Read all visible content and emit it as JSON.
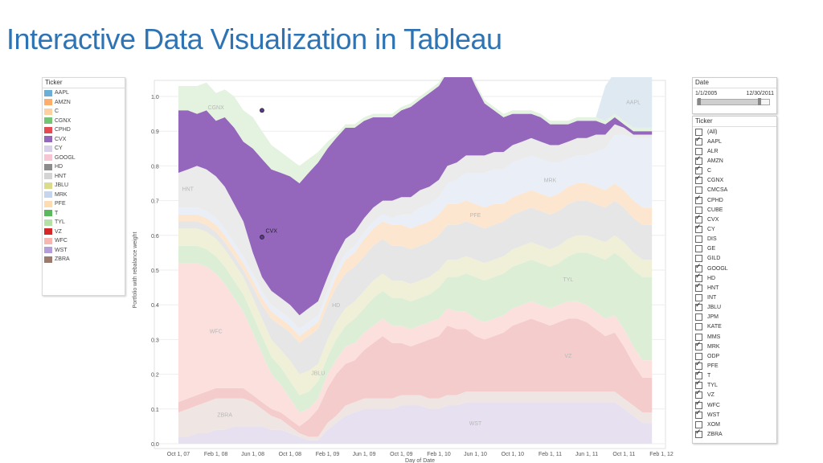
{
  "slide": {
    "title": "Interactive Data Visualization in Tableau"
  },
  "legend": {
    "header": "Ticker",
    "items": [
      {
        "label": "AAPL",
        "color": "#6baed6"
      },
      {
        "label": "AMZN",
        "color": "#fdae6b"
      },
      {
        "label": "C",
        "color": "#fdd0a2"
      },
      {
        "label": "CGNX",
        "color": "#74c476"
      },
      {
        "label": "CPHD",
        "color": "#e34a54"
      },
      {
        "label": "CVX",
        "color": "#9467bd"
      },
      {
        "label": "CY",
        "color": "#d8cfe8"
      },
      {
        "label": "GOOGL",
        "color": "#f7c6d4"
      },
      {
        "label": "HD",
        "color": "#8c8c8c"
      },
      {
        "label": "HNT",
        "color": "#d4d4d4"
      },
      {
        "label": "JBLU",
        "color": "#dbdb8d"
      },
      {
        "label": "MRK",
        "color": "#c6d5ee"
      },
      {
        "label": "PFE",
        "color": "#fddcb2"
      },
      {
        "label": "T",
        "color": "#5cb85c"
      },
      {
        "label": "TYL",
        "color": "#b5e0a8"
      },
      {
        "label": "VZ",
        "color": "#d62728"
      },
      {
        "label": "WFC",
        "color": "#f7b6b2"
      },
      {
        "label": "WST",
        "color": "#b39ddb"
      },
      {
        "label": "ZBRA",
        "color": "#9c7b6e"
      }
    ]
  },
  "date_filter": {
    "header": "Date",
    "start": "1/1/2005",
    "end": "12/30/2011"
  },
  "ticker_filter": {
    "header": "Ticker",
    "items": [
      {
        "label": "(All)",
        "checked": false
      },
      {
        "label": "AAPL",
        "checked": true
      },
      {
        "label": "ALR",
        "checked": false
      },
      {
        "label": "AMZN",
        "checked": true
      },
      {
        "label": "C",
        "checked": true
      },
      {
        "label": "CGNX",
        "checked": true
      },
      {
        "label": "CMCSA",
        "checked": false
      },
      {
        "label": "CPHD",
        "checked": true
      },
      {
        "label": "CUBE",
        "checked": false
      },
      {
        "label": "CVX",
        "checked": true
      },
      {
        "label": "CY",
        "checked": true
      },
      {
        "label": "DIS",
        "checked": false
      },
      {
        "label": "GE",
        "checked": false
      },
      {
        "label": "GILD",
        "checked": false
      },
      {
        "label": "GOOGL",
        "checked": true
      },
      {
        "label": "HD",
        "checked": true
      },
      {
        "label": "HNT",
        "checked": true
      },
      {
        "label": "INT",
        "checked": false
      },
      {
        "label": "JBLU",
        "checked": true
      },
      {
        "label": "JPM",
        "checked": false
      },
      {
        "label": "KATE",
        "checked": false
      },
      {
        "label": "MMS",
        "checked": false
      },
      {
        "label": "MRK",
        "checked": true
      },
      {
        "label": "ODP",
        "checked": false
      },
      {
        "label": "PFE",
        "checked": true
      },
      {
        "label": "T",
        "checked": true
      },
      {
        "label": "TYL",
        "checked": true
      },
      {
        "label": "VZ",
        "checked": true
      },
      {
        "label": "WFC",
        "checked": true
      },
      {
        "label": "WST",
        "checked": true
      },
      {
        "label": "XOM",
        "checked": false
      },
      {
        "label": "ZBRA",
        "checked": true
      }
    ]
  },
  "chart_data": {
    "type": "area",
    "xlabel": "Day of Date",
    "ylabel": "Portfolio with rebalance weight",
    "ylim": [
      0,
      1
    ],
    "yticks": [
      "0.0",
      "0.1",
      "0.2",
      "0.3",
      "0.4",
      "0.5",
      "0.6",
      "0.7",
      "0.8",
      "0.9",
      "1.0"
    ],
    "xticks": [
      "Oct 1, 07",
      "Feb 1, 08",
      "Jun 1, 08",
      "Oct 1, 08",
      "Feb 1, 09",
      "Jun 1, 09",
      "Oct 1, 09",
      "Feb 1, 10",
      "Jun 1, 10",
      "Oct 1, 10",
      "Feb 1, 11",
      "Jun 1, 11",
      "Oct 1, 11",
      "Feb 1, 12"
    ],
    "x_range": [
      "Oct 1, 07",
      "Feb 1, 12"
    ],
    "grid": true,
    "highlighted_series": "CVX",
    "x": [
      "Oct 1, 07",
      "Nov 1, 07",
      "Dec 1, 07",
      "Jan 1, 08",
      "Feb 1, 08",
      "Mar 1, 08",
      "Apr 1, 08",
      "May 1, 08",
      "Jun 1, 08",
      "Jul 1, 08",
      "Aug 1, 08",
      "Sep 1, 08",
      "Oct 1, 08",
      "Nov 1, 08",
      "Dec 1, 08",
      "Jan 1, 09",
      "Feb 1, 09",
      "Mar 1, 09",
      "Apr 1, 09",
      "May 1, 09",
      "Jun 1, 09",
      "Jul 1, 09",
      "Aug 1, 09",
      "Sep 1, 09",
      "Oct 1, 09",
      "Nov 1, 09",
      "Dec 1, 09",
      "Jan 1, 10",
      "Feb 1, 10",
      "Mar 1, 10",
      "Apr 1, 10",
      "May 1, 10",
      "Jun 1, 10",
      "Jul 1, 10",
      "Aug 1, 10",
      "Sep 1, 10",
      "Oct 1, 10",
      "Nov 1, 10",
      "Dec 1, 10",
      "Jan 1, 11",
      "Feb 1, 11",
      "Mar 1, 11",
      "Apr 1, 11",
      "May 1, 11",
      "Jun 1, 11",
      "Jul 1, 11",
      "Aug 1, 11",
      "Sep 1, 11",
      "Oct 1, 11",
      "Nov 1, 11",
      "Dec 1, 11",
      "Jan 1, 12"
    ],
    "series": [
      {
        "name": "WST",
        "color": "#e6e0f0",
        "label_at": "Jun 1, 10",
        "values": [
          0.02,
          0.02,
          0.03,
          0.03,
          0.04,
          0.04,
          0.05,
          0.05,
          0.05,
          0.05,
          0.04,
          0.04,
          0.03,
          0.02,
          0.01,
          0.01,
          0.04,
          0.06,
          0.08,
          0.09,
          0.1,
          0.1,
          0.1,
          0.1,
          0.11,
          0.11,
          0.11,
          0.1,
          0.1,
          0.11,
          0.11,
          0.12,
          0.12,
          0.12,
          0.12,
          0.12,
          0.12,
          0.12,
          0.12,
          0.12,
          0.12,
          0.12,
          0.12,
          0.12,
          0.12,
          0.12,
          0.12,
          0.12,
          0.1,
          0.08,
          0.06,
          0.06
        ]
      },
      {
        "name": "ZBRA",
        "color": "#efe6e3",
        "label_at": "Mar 1, 08",
        "values": [
          0.07,
          0.08,
          0.08,
          0.09,
          0.09,
          0.09,
          0.08,
          0.08,
          0.07,
          0.05,
          0.04,
          0.03,
          0.02,
          0.01,
          0.01,
          0.01,
          0.02,
          0.02,
          0.03,
          0.03,
          0.03,
          0.03,
          0.03,
          0.03,
          0.03,
          0.03,
          0.03,
          0.03,
          0.03,
          0.03,
          0.03,
          0.03,
          0.03,
          0.03,
          0.03,
          0.03,
          0.03,
          0.03,
          0.03,
          0.03,
          0.03,
          0.03,
          0.03,
          0.03,
          0.03,
          0.03,
          0.03,
          0.03,
          0.03,
          0.03,
          0.03,
          0.03
        ]
      },
      {
        "name": "VZ",
        "color": "#f4cccc",
        "label_at": "Apr 1, 11",
        "values": [
          0.03,
          0.03,
          0.03,
          0.03,
          0.03,
          0.03,
          0.03,
          0.03,
          0.02,
          0.02,
          0.02,
          0.02,
          0.02,
          0.02,
          0.05,
          0.08,
          0.1,
          0.12,
          0.12,
          0.12,
          0.14,
          0.16,
          0.18,
          0.16,
          0.15,
          0.14,
          0.15,
          0.17,
          0.18,
          0.2,
          0.19,
          0.18,
          0.16,
          0.15,
          0.16,
          0.17,
          0.19,
          0.2,
          0.21,
          0.2,
          0.19,
          0.2,
          0.21,
          0.21,
          0.2,
          0.18,
          0.16,
          0.17,
          0.15,
          0.12,
          0.1,
          0.1
        ]
      },
      {
        "name": "WFC",
        "color": "#fbe0de",
        "label_at": "Feb 1, 08",
        "values": [
          0.4,
          0.39,
          0.38,
          0.36,
          0.33,
          0.3,
          0.26,
          0.22,
          0.18,
          0.14,
          0.1,
          0.08,
          0.06,
          0.04,
          0.03,
          0.03,
          0.04,
          0.04,
          0.05,
          0.05,
          0.05,
          0.05,
          0.05,
          0.05,
          0.05,
          0.05,
          0.05,
          0.05,
          0.05,
          0.05,
          0.05,
          0.05,
          0.05,
          0.05,
          0.05,
          0.05,
          0.05,
          0.05,
          0.05,
          0.05,
          0.05,
          0.05,
          0.05,
          0.05,
          0.05,
          0.05,
          0.05,
          0.05,
          0.05,
          0.05,
          0.05,
          0.05
        ]
      },
      {
        "name": "TYL",
        "color": "#dcefd6",
        "label_at": "Apr 1, 11",
        "values": [
          0.05,
          0.05,
          0.05,
          0.05,
          0.05,
          0.05,
          0.05,
          0.05,
          0.05,
          0.05,
          0.05,
          0.05,
          0.05,
          0.05,
          0.05,
          0.05,
          0.05,
          0.06,
          0.06,
          0.07,
          0.07,
          0.08,
          0.08,
          0.08,
          0.08,
          0.08,
          0.08,
          0.08,
          0.09,
          0.09,
          0.1,
          0.11,
          0.12,
          0.12,
          0.12,
          0.12,
          0.12,
          0.12,
          0.12,
          0.12,
          0.12,
          0.12,
          0.13,
          0.14,
          0.15,
          0.16,
          0.17,
          0.18,
          0.2,
          0.22,
          0.24,
          0.24
        ]
      },
      {
        "name": "JBLU",
        "color": "#f0f0d8",
        "label_at": "Jan 1, 09",
        "values": [
          0.05,
          0.05,
          0.05,
          0.05,
          0.05,
          0.05,
          0.05,
          0.05,
          0.05,
          0.05,
          0.05,
          0.05,
          0.06,
          0.06,
          0.06,
          0.05,
          0.05,
          0.05,
          0.05,
          0.05,
          0.05,
          0.05,
          0.05,
          0.05,
          0.05,
          0.05,
          0.05,
          0.05,
          0.05,
          0.05,
          0.05,
          0.05,
          0.05,
          0.05,
          0.05,
          0.05,
          0.05,
          0.05,
          0.05,
          0.05,
          0.05,
          0.05,
          0.05,
          0.05,
          0.05,
          0.05,
          0.05,
          0.05,
          0.05,
          0.05,
          0.05,
          0.05
        ]
      },
      {
        "name": "HD",
        "color": "#e6e6e6",
        "label_at": "Mar 1, 09",
        "values": [
          0.02,
          0.02,
          0.02,
          0.02,
          0.02,
          0.02,
          0.02,
          0.02,
          0.03,
          0.04,
          0.06,
          0.07,
          0.08,
          0.09,
          0.1,
          0.1,
          0.1,
          0.1,
          0.1,
          0.1,
          0.1,
          0.1,
          0.1,
          0.1,
          0.1,
          0.1,
          0.1,
          0.1,
          0.1,
          0.1,
          0.1,
          0.1,
          0.1,
          0.1,
          0.1,
          0.1,
          0.1,
          0.1,
          0.1,
          0.1,
          0.1,
          0.1,
          0.1,
          0.1,
          0.1,
          0.1,
          0.1,
          0.1,
          0.1,
          0.1,
          0.1,
          0.1
        ]
      },
      {
        "name": "PFE",
        "color": "#fde6cf",
        "label_at": "Jun 1, 10",
        "values": [
          0.02,
          0.02,
          0.02,
          0.02,
          0.02,
          0.02,
          0.02,
          0.02,
          0.02,
          0.02,
          0.02,
          0.02,
          0.02,
          0.02,
          0.02,
          0.02,
          0.02,
          0.03,
          0.04,
          0.04,
          0.05,
          0.05,
          0.05,
          0.06,
          0.06,
          0.06,
          0.06,
          0.06,
          0.06,
          0.06,
          0.06,
          0.06,
          0.06,
          0.06,
          0.06,
          0.05,
          0.05,
          0.05,
          0.05,
          0.05,
          0.05,
          0.05,
          0.05,
          0.05,
          0.05,
          0.05,
          0.05,
          0.05,
          0.05,
          0.05,
          0.05,
          0.05
        ]
      },
      {
        "name": "MRK",
        "color": "#e9eef7",
        "label_at": "Feb 1, 11",
        "values": [
          0.02,
          0.02,
          0.02,
          0.02,
          0.02,
          0.02,
          0.02,
          0.02,
          0.02,
          0.02,
          0.02,
          0.02,
          0.02,
          0.02,
          0.02,
          0.02,
          0.02,
          0.02,
          0.02,
          0.02,
          0.02,
          0.02,
          0.02,
          0.02,
          0.03,
          0.04,
          0.05,
          0.05,
          0.05,
          0.06,
          0.07,
          0.08,
          0.09,
          0.1,
          0.1,
          0.1,
          0.1,
          0.1,
          0.1,
          0.1,
          0.1,
          0.09,
          0.08,
          0.08,
          0.08,
          0.1,
          0.12,
          0.14,
          0.16,
          0.18,
          0.2,
          0.2
        ]
      },
      {
        "name": "HNT",
        "color": "#ebebeb",
        "label_at": "Nov 1, 07",
        "values": [
          0.1,
          0.11,
          0.12,
          0.12,
          0.12,
          0.12,
          0.11,
          0.1,
          0.06,
          0.04,
          0.04,
          0.04,
          0.04,
          0.04,
          0.04,
          0.04,
          0.04,
          0.04,
          0.04,
          0.04,
          0.04,
          0.04,
          0.04,
          0.05,
          0.05,
          0.05,
          0.05,
          0.05,
          0.05,
          0.05,
          0.05,
          0.05,
          0.05,
          0.05,
          0.05,
          0.05,
          0.05,
          0.05,
          0.05,
          0.05,
          0.05,
          0.05,
          0.05,
          0.05,
          0.05,
          0.05,
          0.04,
          0.03,
          0.02,
          0.01,
          0.01,
          0.01
        ]
      },
      {
        "name": "CVX",
        "color": "#9467bd",
        "label_at": "Aug 1, 08",
        "values": [
          0.18,
          0.17,
          0.15,
          0.17,
          0.16,
          0.2,
          0.22,
          0.23,
          0.3,
          0.34,
          0.35,
          0.36,
          0.37,
          0.38,
          0.39,
          0.4,
          0.37,
          0.34,
          0.32,
          0.3,
          0.28,
          0.26,
          0.24,
          0.24,
          0.25,
          0.26,
          0.26,
          0.27,
          0.27,
          0.27,
          0.27,
          0.26,
          0.2,
          0.15,
          0.12,
          0.1,
          0.09,
          0.08,
          0.07,
          0.07,
          0.06,
          0.06,
          0.05,
          0.05,
          0.05,
          0.04,
          0.03,
          0.02,
          0.01,
          0.01,
          0.01,
          0.01
        ]
      },
      {
        "name": "CGNX",
        "color": "#e4f2e0",
        "label_at": "Feb 1, 08",
        "values": [
          0.07,
          0.07,
          0.08,
          0.08,
          0.08,
          0.08,
          0.09,
          0.09,
          0.09,
          0.08,
          0.07,
          0.06,
          0.05,
          0.05,
          0.04,
          0.03,
          0.02,
          0.01,
          0.01,
          0.01,
          0.01,
          0.01,
          0.01,
          0.01,
          0.01,
          0.01,
          0.01,
          0.01,
          0.01,
          0.01,
          0.01,
          0.01,
          0.01,
          0.01,
          0.01,
          0.01,
          0.01,
          0.01,
          0.01,
          0.01,
          0.01,
          0.01,
          0.01,
          0.01,
          0.01,
          0.01,
          0.01,
          0.01,
          0.01,
          0.01,
          0.01,
          0.01
        ]
      },
      {
        "name": "AAPL",
        "color": "#dfe9f2",
        "label_at": "Nov 1, 11",
        "values": [
          0.0,
          0.0,
          0.0,
          0.0,
          0.0,
          0.0,
          0.0,
          0.0,
          0.0,
          0.0,
          0.0,
          0.0,
          0.0,
          0.0,
          0.0,
          0.0,
          0.0,
          0.0,
          0.0,
          0.0,
          0.0,
          0.0,
          0.0,
          0.0,
          0.0,
          0.0,
          0.0,
          0.0,
          0.0,
          0.0,
          0.0,
          0.0,
          0.0,
          0.0,
          0.0,
          0.0,
          0.0,
          0.0,
          0.0,
          0.0,
          0.0,
          0.0,
          0.0,
          0.0,
          0.0,
          0.0,
          0.1,
          0.12,
          0.14,
          0.15,
          0.15,
          0.15
        ]
      }
    ],
    "annotations": [
      {
        "label": "CVX top",
        "x": "Jul 1, 08",
        "y": 0.96
      },
      {
        "label": "CVX bottom",
        "x": "Jul 1, 08",
        "y": 0.595
      }
    ]
  }
}
